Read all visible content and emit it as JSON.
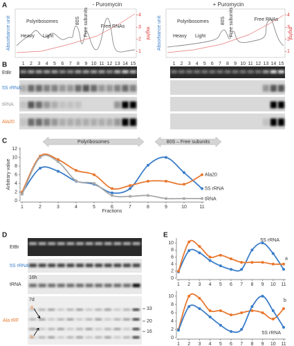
{
  "panel_labels": [
    "A",
    "B",
    "C",
    "D",
    "E"
  ],
  "panel_a": {
    "titles": [
      "- Puromycin",
      "+ Puromycin"
    ],
    "y_label": "Absorbance unit",
    "y2_label": "mg/ml",
    "y2ticks": [
      1,
      2,
      3,
      4
    ],
    "polyribosomes": "Polyribosomes",
    "heavy": "Heavy",
    "light": "Light",
    "s80": "80S",
    "free_subunits": "Free subunits",
    "free_rnas": "Free RNAs"
  },
  "panel_b": {
    "lanes": [
      1,
      2,
      3,
      4,
      5,
      6,
      7,
      8,
      9,
      10,
      11,
      12,
      13,
      14,
      15
    ],
    "rows": [
      "EtBr",
      "5S rRNA",
      "tRNA",
      "Ala20"
    ]
  },
  "panel_d": {
    "rows": [
      "EtBr",
      "5S rRNA",
      "tRNA",
      "Ala tRF"
    ],
    "time_16h": "16h",
    "time_7d": "7d",
    "band_a": "a",
    "band_b": "b",
    "markers": [
      33,
      20,
      16
    ]
  },
  "chart_data": [
    {
      "type": "line",
      "x_label": "Fractions",
      "y_label": "Arbitrary value",
      "annotations": [
        "Polyribosomes",
        "80S – Free subunits"
      ],
      "x": [
        1,
        2,
        3,
        4,
        5,
        6,
        7,
        8,
        9,
        10,
        11
      ],
      "xlim": [
        1,
        11
      ],
      "ylim": [
        0,
        12
      ],
      "yticks": [
        0,
        2,
        4,
        6,
        8,
        10,
        12
      ],
      "series": [
        {
          "name": "5S rRNA",
          "color": "#3a7dc9",
          "values": [
            1.8,
            7.5,
            6.8,
            4.5,
            3.8,
            1.8,
            2.8,
            8.2,
            10,
            6.5,
            2.8
          ]
        },
        {
          "name": "Ala20",
          "color": "#e8772e",
          "values": [
            2,
            10.3,
            9.5,
            7,
            6,
            2.8,
            3.5,
            4.5,
            4.5,
            3.8,
            6
          ]
        },
        {
          "name": "tRNA",
          "color": "#a8a8a8",
          "values": [
            1.5,
            10,
            9,
            4.6,
            4,
            1.2,
            1,
            1.2,
            0.5,
            0.5,
            0.5
          ]
        }
      ]
    },
    {
      "type": "line",
      "x": [
        1,
        2,
        3,
        4,
        5,
        6,
        7,
        8,
        9,
        10,
        11
      ],
      "xlim": [
        1,
        11
      ],
      "ylim": [
        0,
        11
      ],
      "yticks": [
        0,
        2,
        4,
        6,
        8,
        10
      ],
      "series": [
        {
          "name": "5S rRNA",
          "color": "#3a7dc9",
          "values": [
            1.8,
            7.8,
            7.2,
            5,
            3.5,
            2.5,
            2.5,
            8,
            10,
            7,
            2.5
          ]
        },
        {
          "name": "a",
          "color": "#e8772e",
          "values": [
            2,
            10.3,
            9,
            6,
            6.5,
            5.5,
            4.5,
            4.5,
            4.5,
            4,
            4
          ]
        }
      ]
    },
    {
      "type": "line",
      "x": [
        1,
        2,
        3,
        4,
        5,
        6,
        7,
        8,
        9,
        10,
        11
      ],
      "xlim": [
        1,
        11
      ],
      "ylim": [
        0,
        11
      ],
      "yticks": [
        0,
        2,
        4,
        6,
        8,
        10
      ],
      "series": [
        {
          "name": "b",
          "color": "#e8772e",
          "values": [
            2,
            10,
            9.5,
            6.5,
            6.5,
            5.5,
            6,
            6.5,
            6,
            4.5,
            7
          ]
        },
        {
          "name": "5S rRNA",
          "color": "#3a7dc9",
          "values": [
            1.8,
            7.5,
            7,
            5,
            3,
            1.5,
            2,
            7.5,
            10,
            6.5,
            2.5
          ]
        }
      ]
    }
  ]
}
